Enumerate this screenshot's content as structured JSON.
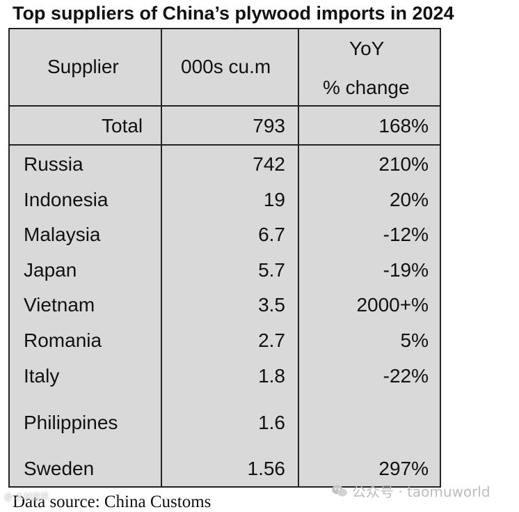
{
  "title": "Top suppliers of China’s plywood imports in 2024",
  "table": {
    "headers": {
      "supplier": "Supplier",
      "volume": "000s cu.m",
      "yoy_line1": "YoY",
      "yoy_line2": "% change"
    },
    "total": {
      "label": "Total",
      "volume": "793",
      "yoy": "168%"
    },
    "rows": [
      {
        "supplier": "Russia",
        "volume": "742",
        "yoy": "210%"
      },
      {
        "supplier": "Indonesia",
        "volume": "19",
        "yoy": "20%"
      },
      {
        "supplier": "Malaysia",
        "volume": "6.7",
        "yoy": "-12%"
      },
      {
        "supplier": "Japan",
        "volume": "5.7",
        "yoy": "-19%"
      },
      {
        "supplier": "Vietnam",
        "volume": "3.5",
        "yoy": "2000+%"
      },
      {
        "supplier": "Romania",
        "volume": "2.7",
        "yoy": "5%"
      },
      {
        "supplier": "Italy",
        "volume": "1.8",
        "yoy": "-22%"
      },
      {
        "supplier": "Philippines",
        "volume": "1.6",
        "yoy": ""
      },
      {
        "supplier": "Sweden",
        "volume": "1.56",
        "yoy": "297%"
      }
    ]
  },
  "footer": "Data source: China Customs",
  "watermarks": {
    "left": "@ 木材资讯",
    "right": "公众号 · taomuworld",
    "right_icon": "wechat-icon"
  },
  "colors": {
    "table_bg": "#d9d9d9",
    "border": "#222222"
  }
}
